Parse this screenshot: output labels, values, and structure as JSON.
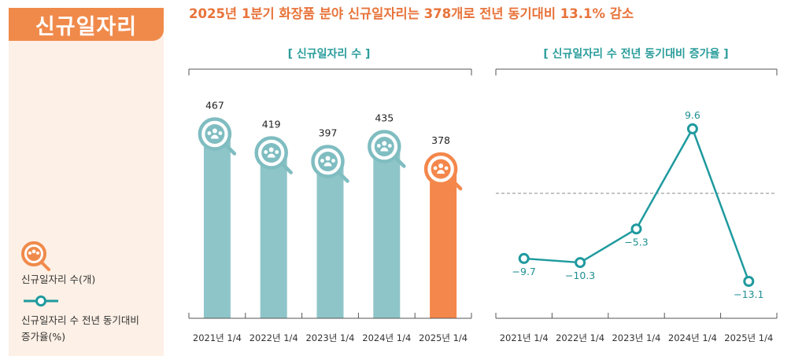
{
  "badge": "신규일자리",
  "headline": "2025년 1분기 화장품 분야 신규일자리는 378개로 전년 동기대비 13.1% 감소",
  "legend": {
    "bar_label": "신규일자리 수(개)",
    "line_label_1": "신규일자리 수 전년 동기대비",
    "line_label_2": "증가율(%)"
  },
  "colors": {
    "bar": "#8ec5c9",
    "highlight": "#f4874b",
    "line": "#1e9a9e",
    "accent": "#e8733a"
  },
  "chart_data": [
    {
      "type": "bar",
      "title": "[ 신규일자리 수 ]",
      "categories": [
        "2021년 1/4",
        "2022년 1/4",
        "2023년 1/4",
        "2024년 1/4",
        "2025년 1/4"
      ],
      "values": [
        467,
        419,
        397,
        435,
        378
      ],
      "highlight_index": 4,
      "ylim": [
        0,
        600
      ]
    },
    {
      "type": "line",
      "title": "[ 신규일자리 수 전년 동기대비 증가율 ]",
      "categories": [
        "2021년 1/4",
        "2022년 1/4",
        "2023년 1/4",
        "2024년 1/4",
        "2025년 1/4"
      ],
      "values": [
        -9.7,
        -10.3,
        -5.3,
        9.6,
        -13.1
      ],
      "labels": [
        "−9.7",
        "−10.3",
        "−5.3",
        "9.6",
        "−13.1"
      ],
      "zero_line": "dashed",
      "ylim": [
        -25,
        20
      ]
    }
  ]
}
